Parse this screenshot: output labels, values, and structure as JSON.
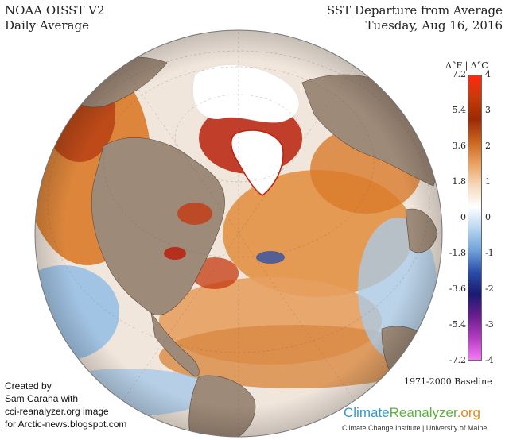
{
  "header": {
    "title_line1": "NOAA OISST V2",
    "title_line2": "Daily Average",
    "right_line1": "SST Departure from Average",
    "right_line2": "Tuesday, Aug 16, 2016"
  },
  "legend": {
    "units": "Δ°F | Δ°C",
    "fahrenheit_ticks": [
      "7.2",
      "5.4",
      "3.6",
      "1.8",
      "0",
      "-1.8",
      "-3.6",
      "-5.4",
      "-7.2"
    ],
    "celsius_ticks": [
      "4",
      "3",
      "2",
      "1",
      "0",
      "-1",
      "-2",
      "-3",
      "-4"
    ],
    "colors": [
      "#ff2a10",
      "#c83a0a",
      "#9a2a06",
      "#c8641e",
      "#e8a060",
      "#f6d8b8",
      "#ffffff",
      "#b8d6f0",
      "#6fa2da",
      "#2a4ea8",
      "#1a1a70",
      "#6a1e8e",
      "#b23cc0",
      "#f57af5"
    ]
  },
  "baseline": "1971-2000 Baseline",
  "credit": {
    "line1": "Created by",
    "line2": "Sam Carana with",
    "line3": "cci-reanalyzer.org image",
    "line4": "for Arctic-news.blogspot.com"
  },
  "brand": {
    "part1": "Climate",
    "part2": "Reanalyzer",
    "part3": ".org",
    "sub": "Climate Change Institute | University of Maine"
  },
  "map_colors": {
    "land": "#9e8a78",
    "ice": "#ffffff",
    "warm": "#d9741e",
    "hot": "#c0200c",
    "cool": "#7ab0e0",
    "neutral": "#f1f1f1"
  }
}
